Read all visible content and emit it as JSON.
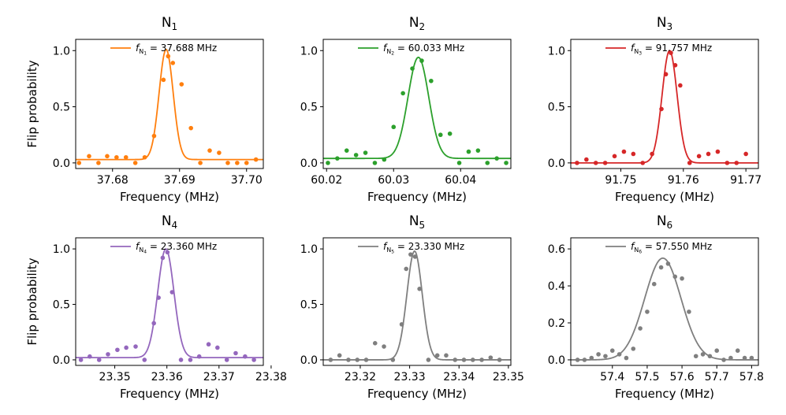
{
  "chart_data": [
    {
      "type": "scatter",
      "title": "N",
      "title_sub": "1",
      "xlabel": "Frequency (MHz)",
      "ylabel": "Flip probability",
      "xlim": [
        37.6745,
        37.7025
      ],
      "ylim": [
        -0.05,
        1.1
      ],
      "xticks": [
        37.68,
        37.69,
        37.7
      ],
      "xtick_labels": [
        "37.68",
        "37.69",
        "37.70"
      ],
      "yticks": [
        0.0,
        0.5,
        1.0
      ],
      "ytick_labels": [
        "0.0",
        "0.5",
        "1.0"
      ],
      "color": "#ff7f0e",
      "legend": {
        "prefix": "f",
        "sub": "N",
        "subsub": "1",
        "text": " = 37.688 MHz"
      },
      "fit": {
        "center": 37.688,
        "amplitude": 0.98,
        "sigma": 0.00105,
        "offset": 0.03
      },
      "series": [
        {
          "x": [
            37.675,
            37.6765,
            37.6779,
            37.6792,
            37.6806,
            37.682,
            37.6834,
            37.6848,
            37.6862,
            37.6876,
            37.6883,
            37.689,
            37.6903,
            37.6917,
            37.6931,
            37.6945,
            37.6959,
            37.6972,
            37.6986,
            37.7,
            37.7014
          ],
          "y": [
            0.0,
            0.06,
            0.0,
            0.06,
            0.05,
            0.05,
            0.0,
            0.05,
            0.24,
            0.74,
            0.95,
            0.89,
            0.7,
            0.31,
            0.0,
            0.11,
            0.09,
            0.0,
            0.0,
            0.0,
            0.03
          ]
        }
      ]
    },
    {
      "type": "scatter",
      "title": "N",
      "title_sub": "2",
      "xlabel": "Frequency (MHz)",
      "ylabel": "",
      "xlim": [
        60.0195,
        60.0475
      ],
      "ylim": [
        -0.05,
        1.1
      ],
      "xticks": [
        60.02,
        60.03,
        60.04
      ],
      "xtick_labels": [
        "60.02",
        "60.03",
        "60.04"
      ],
      "yticks": [
        0.0,
        0.5,
        1.0
      ],
      "ytick_labels": [
        "0.0",
        "0.5",
        "1.0"
      ],
      "color": "#2ca02c",
      "legend": {
        "prefix": "f",
        "sub": "N",
        "subsub": "2",
        "text": " = 60.033 MHz"
      },
      "fit": {
        "center": 60.0337,
        "amplitude": 0.9,
        "sigma": 0.00155,
        "offset": 0.04
      },
      "series": [
        {
          "x": [
            60.0202,
            60.0216,
            60.023,
            60.0244,
            60.0258,
            60.0272,
            60.0286,
            60.03,
            60.0314,
            60.0328,
            60.0342,
            60.0356,
            60.037,
            60.0384,
            60.0398,
            60.0412,
            60.0426,
            60.044,
            60.0454,
            60.0468
          ],
          "y": [
            0.0,
            0.04,
            0.11,
            0.07,
            0.09,
            0.0,
            0.03,
            0.32,
            0.62,
            0.84,
            0.91,
            0.73,
            0.25,
            0.26,
            0.0,
            0.1,
            0.11,
            0.0,
            0.04,
            0.0
          ]
        }
      ]
    },
    {
      "type": "scatter",
      "title": "N",
      "title_sub": "3",
      "xlabel": "Frequency (MHz)",
      "ylabel": "",
      "xlim": [
        91.742,
        91.772
      ],
      "ylim": [
        -0.05,
        1.1
      ],
      "xticks": [
        91.75,
        91.76,
        91.77
      ],
      "xtick_labels": [
        "91.75",
        "91.76",
        "91.77"
      ],
      "yticks": [
        0.0,
        0.5,
        1.0
      ],
      "ytick_labels": [
        "0.0",
        "0.5",
        "1.0"
      ],
      "color": "#d62728",
      "legend": {
        "prefix": "f",
        "sub": "N",
        "subsub": "3",
        "text": " = 91.757 MHz"
      },
      "fit": {
        "center": 91.7578,
        "amplitude": 1.0,
        "sigma": 0.0012,
        "offset": 0.0
      },
      "series": [
        {
          "x": [
            91.743,
            91.7445,
            91.746,
            91.7475,
            91.749,
            91.7505,
            91.752,
            91.7535,
            91.755,
            91.7565,
            91.7572,
            91.758,
            91.7587,
            91.7595,
            91.761,
            91.7625,
            91.764,
            91.7655,
            91.767,
            91.7685,
            91.77
          ],
          "y": [
            0.0,
            0.03,
            0.0,
            0.0,
            0.06,
            0.1,
            0.08,
            0.0,
            0.08,
            0.48,
            0.79,
            0.98,
            0.87,
            0.69,
            0.0,
            0.06,
            0.08,
            0.1,
            0.0,
            0.0,
            0.08
          ]
        }
      ]
    },
    {
      "type": "scatter",
      "title": "N",
      "title_sub": "4",
      "xlabel": "Frequency (MHz)",
      "ylabel": "Flip probability",
      "xlim": [
        23.3425,
        23.3785
      ],
      "ylim": [
        -0.05,
        1.1
      ],
      "xticks": [
        23.35,
        23.36,
        23.37,
        23.38
      ],
      "xtick_labels": [
        "23.35",
        "23.36",
        "23.37",
        "23.38"
      ],
      "yticks": [
        0.0,
        0.5,
        1.0
      ],
      "ytick_labels": [
        "0.0",
        "0.5",
        "1.0"
      ],
      "color": "#9467bd",
      "legend": {
        "prefix": "f",
        "sub": "N",
        "subsub": "4",
        "text": " = 23.360 MHz"
      },
      "fit": {
        "center": 23.3598,
        "amplitude": 0.98,
        "sigma": 0.00155,
        "offset": 0.02
      },
      "series": [
        {
          "x": [
            23.3435,
            23.3452,
            23.347,
            23.3487,
            23.3505,
            23.3522,
            23.354,
            23.3557,
            23.3575,
            23.3584,
            23.3592,
            23.3601,
            23.361,
            23.3627,
            23.3645,
            23.3662,
            23.368,
            23.3697,
            23.3715,
            23.3732,
            23.375,
            23.3767
          ],
          "y": [
            0.0,
            0.03,
            0.0,
            0.05,
            0.09,
            0.11,
            0.12,
            0.0,
            0.33,
            0.56,
            0.92,
            0.97,
            0.61,
            0.0,
            0.0,
            0.03,
            0.14,
            0.11,
            0.0,
            0.06,
            0.03,
            0.0
          ]
        }
      ]
    },
    {
      "type": "scatter",
      "title": "N",
      "title_sub": "5",
      "xlabel": "Frequency (MHz)",
      "ylabel": "",
      "xlim": [
        23.3125,
        23.3505
      ],
      "ylim": [
        -0.05,
        1.1
      ],
      "xticks": [
        23.32,
        23.33,
        23.34,
        23.35
      ],
      "xtick_labels": [
        "23.32",
        "23.33",
        "23.34",
        "23.35"
      ],
      "yticks": [
        0.0,
        0.5,
        1.0
      ],
      "ytick_labels": [
        "0.0",
        "0.5",
        "1.0"
      ],
      "color": "#7f7f7f",
      "legend": {
        "prefix": "f",
        "sub": "N",
        "subsub": "5",
        "text": " = 23.330 MHz"
      },
      "fit": {
        "center": 23.331,
        "amplitude": 0.98,
        "sigma": 0.00155,
        "offset": 0.0
      },
      "series": [
        {
          "x": [
            23.314,
            23.3158,
            23.3176,
            23.3194,
            23.3212,
            23.323,
            23.3248,
            23.3266,
            23.3284,
            23.3293,
            23.3302,
            23.3311,
            23.332,
            23.3338,
            23.3356,
            23.3374,
            23.3392,
            23.341,
            23.3428,
            23.3446,
            23.3464,
            23.3482
          ],
          "y": [
            0.0,
            0.04,
            0.0,
            0.0,
            0.0,
            0.15,
            0.12,
            0.0,
            0.32,
            0.82,
            0.95,
            0.93,
            0.64,
            0.0,
            0.04,
            0.04,
            0.0,
            0.0,
            0.0,
            0.0,
            0.02,
            0.0
          ]
        }
      ]
    },
    {
      "type": "scatter",
      "title": "N",
      "title_sub": "6",
      "xlabel": "Frequency (MHz)",
      "ylabel": "",
      "xlim": [
        57.2805,
        57.8195
      ],
      "ylim": [
        -0.03,
        0.66
      ],
      "xticks": [
        57.4,
        57.5,
        57.6,
        57.7,
        57.8
      ],
      "xtick_labels": [
        "57.4",
        "57.5",
        "57.6",
        "57.7",
        "57.8"
      ],
      "yticks": [
        0.0,
        0.2,
        0.4,
        0.6
      ],
      "ytick_labels": [
        "0.0",
        "0.2",
        "0.4",
        "0.6"
      ],
      "color": "#7f7f7f",
      "legend": {
        "prefix": "f",
        "sub": "N",
        "subsub": "6",
        "text": " = 57.550 MHz"
      },
      "fit": {
        "center": 57.545,
        "amplitude": 0.55,
        "sigma": 0.052,
        "offset": 0.0
      },
      "series": [
        {
          "x": [
            57.3,
            57.32,
            57.34,
            57.36,
            57.38,
            57.4,
            57.42,
            57.44,
            57.46,
            57.48,
            57.5,
            57.52,
            57.54,
            57.56,
            57.58,
            57.6,
            57.62,
            57.64,
            57.66,
            57.68,
            57.7,
            57.72,
            57.74,
            57.76,
            57.78,
            57.8
          ],
          "y": [
            0.0,
            0.0,
            0.01,
            0.03,
            0.02,
            0.05,
            0.03,
            0.01,
            0.06,
            0.17,
            0.26,
            0.41,
            0.5,
            0.52,
            0.45,
            0.44,
            0.26,
            0.02,
            0.03,
            0.02,
            0.05,
            0.0,
            0.01,
            0.05,
            0.01,
            0.01
          ]
        }
      ]
    }
  ]
}
